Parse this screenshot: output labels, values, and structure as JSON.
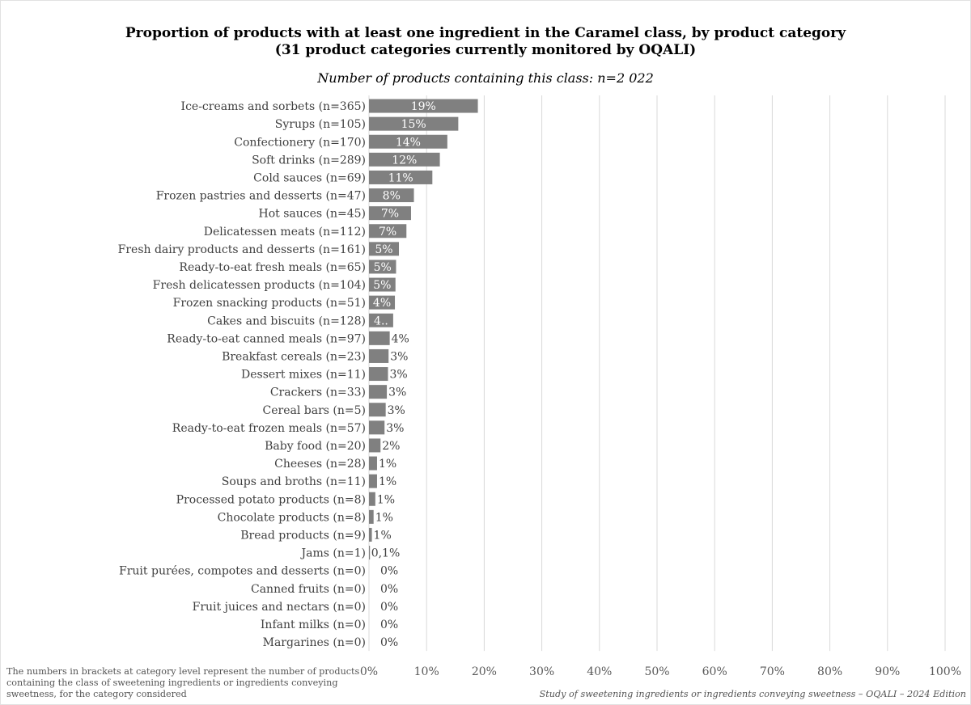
{
  "chart_data": {
    "type": "bar",
    "orientation": "horizontal",
    "title_lines": [
      "Proportion of products with at least one ingredient in the Caramel class, by product category",
      "(31 product categories currently monitored by OQALI)"
    ],
    "subtitle": "Number of products containing this class: n=2 022",
    "categories": [
      "Ice-creams and sorbets (n=365)",
      "Syrups (n=105)",
      "Confectionery (n=170)",
      "Soft drinks (n=289)",
      "Cold sauces (n=69)",
      "Frozen pastries and desserts (n=47)",
      "Hot sauces (n=45)",
      "Delicatessen meats (n=112)",
      "Fresh dairy products and desserts (n=161)",
      "Ready-to-eat fresh meals (n=65)",
      "Fresh delicatessen products (n=104)",
      "Frozen snacking products (n=51)",
      "Cakes and biscuits (n=128)",
      "Ready-to-eat canned meals (n=97)",
      "Breakfast cereals (n=23)",
      "Dessert mixes (n=11)",
      "Crackers (n=33)",
      "Cereal bars (n=5)",
      "Ready-to-eat frozen meals (n=57)",
      "Baby food (n=20)",
      "Cheeses (n=28)",
      "Soups and broths (n=11)",
      "Processed potato products (n=8)",
      "Chocolate products (n=8)",
      "Bread products (n=9)",
      "Jams (n=1)",
      "Fruit purées, compotes and desserts (n=0)",
      "Canned fruits (n=0)",
      "Fruit juices and nectars (n=0)",
      "Infant milks (n=0)",
      "Margarines (n=0)"
    ],
    "values": [
      18.9,
      15.5,
      13.6,
      12.3,
      11.0,
      7.8,
      7.3,
      6.5,
      5.2,
      4.7,
      4.6,
      4.5,
      4.2,
      3.6,
      3.4,
      3.3,
      3.1,
      2.9,
      2.7,
      2.0,
      1.4,
      1.4,
      1.1,
      0.8,
      0.5,
      0.1,
      0,
      0,
      0,
      0,
      0
    ],
    "labels": [
      "19%",
      "15%",
      "14%",
      "12%",
      "11%",
      "8%",
      "7%",
      "7%",
      "5%",
      "5%",
      "5%",
      "4%",
      "4..",
      "4%",
      "3%",
      "3%",
      "3%",
      "3%",
      "3%",
      "2%",
      "1%",
      "1%",
      "1%",
      "1%",
      "1%",
      "0,1%",
      "0%",
      "0%",
      "0%",
      "0%",
      "0%"
    ],
    "x_ticks": [
      "0%",
      "10%",
      "20%",
      "30%",
      "40%",
      "50%",
      "60%",
      "70%",
      "80%",
      "90%",
      "100%"
    ],
    "xlim": [
      0,
      100
    ],
    "grid": true,
    "bar_color": "#808080",
    "gridline_color": "#d9d9d9",
    "footnote": "The numbers in brackets at category level represent the number of products containing the class of sweetening ingredients or ingredients conveying sweetness, for the category considered",
    "source": "Study of sweetening ingredients or ingredients conveying sweetness – OQALI – 2024 Edition"
  }
}
